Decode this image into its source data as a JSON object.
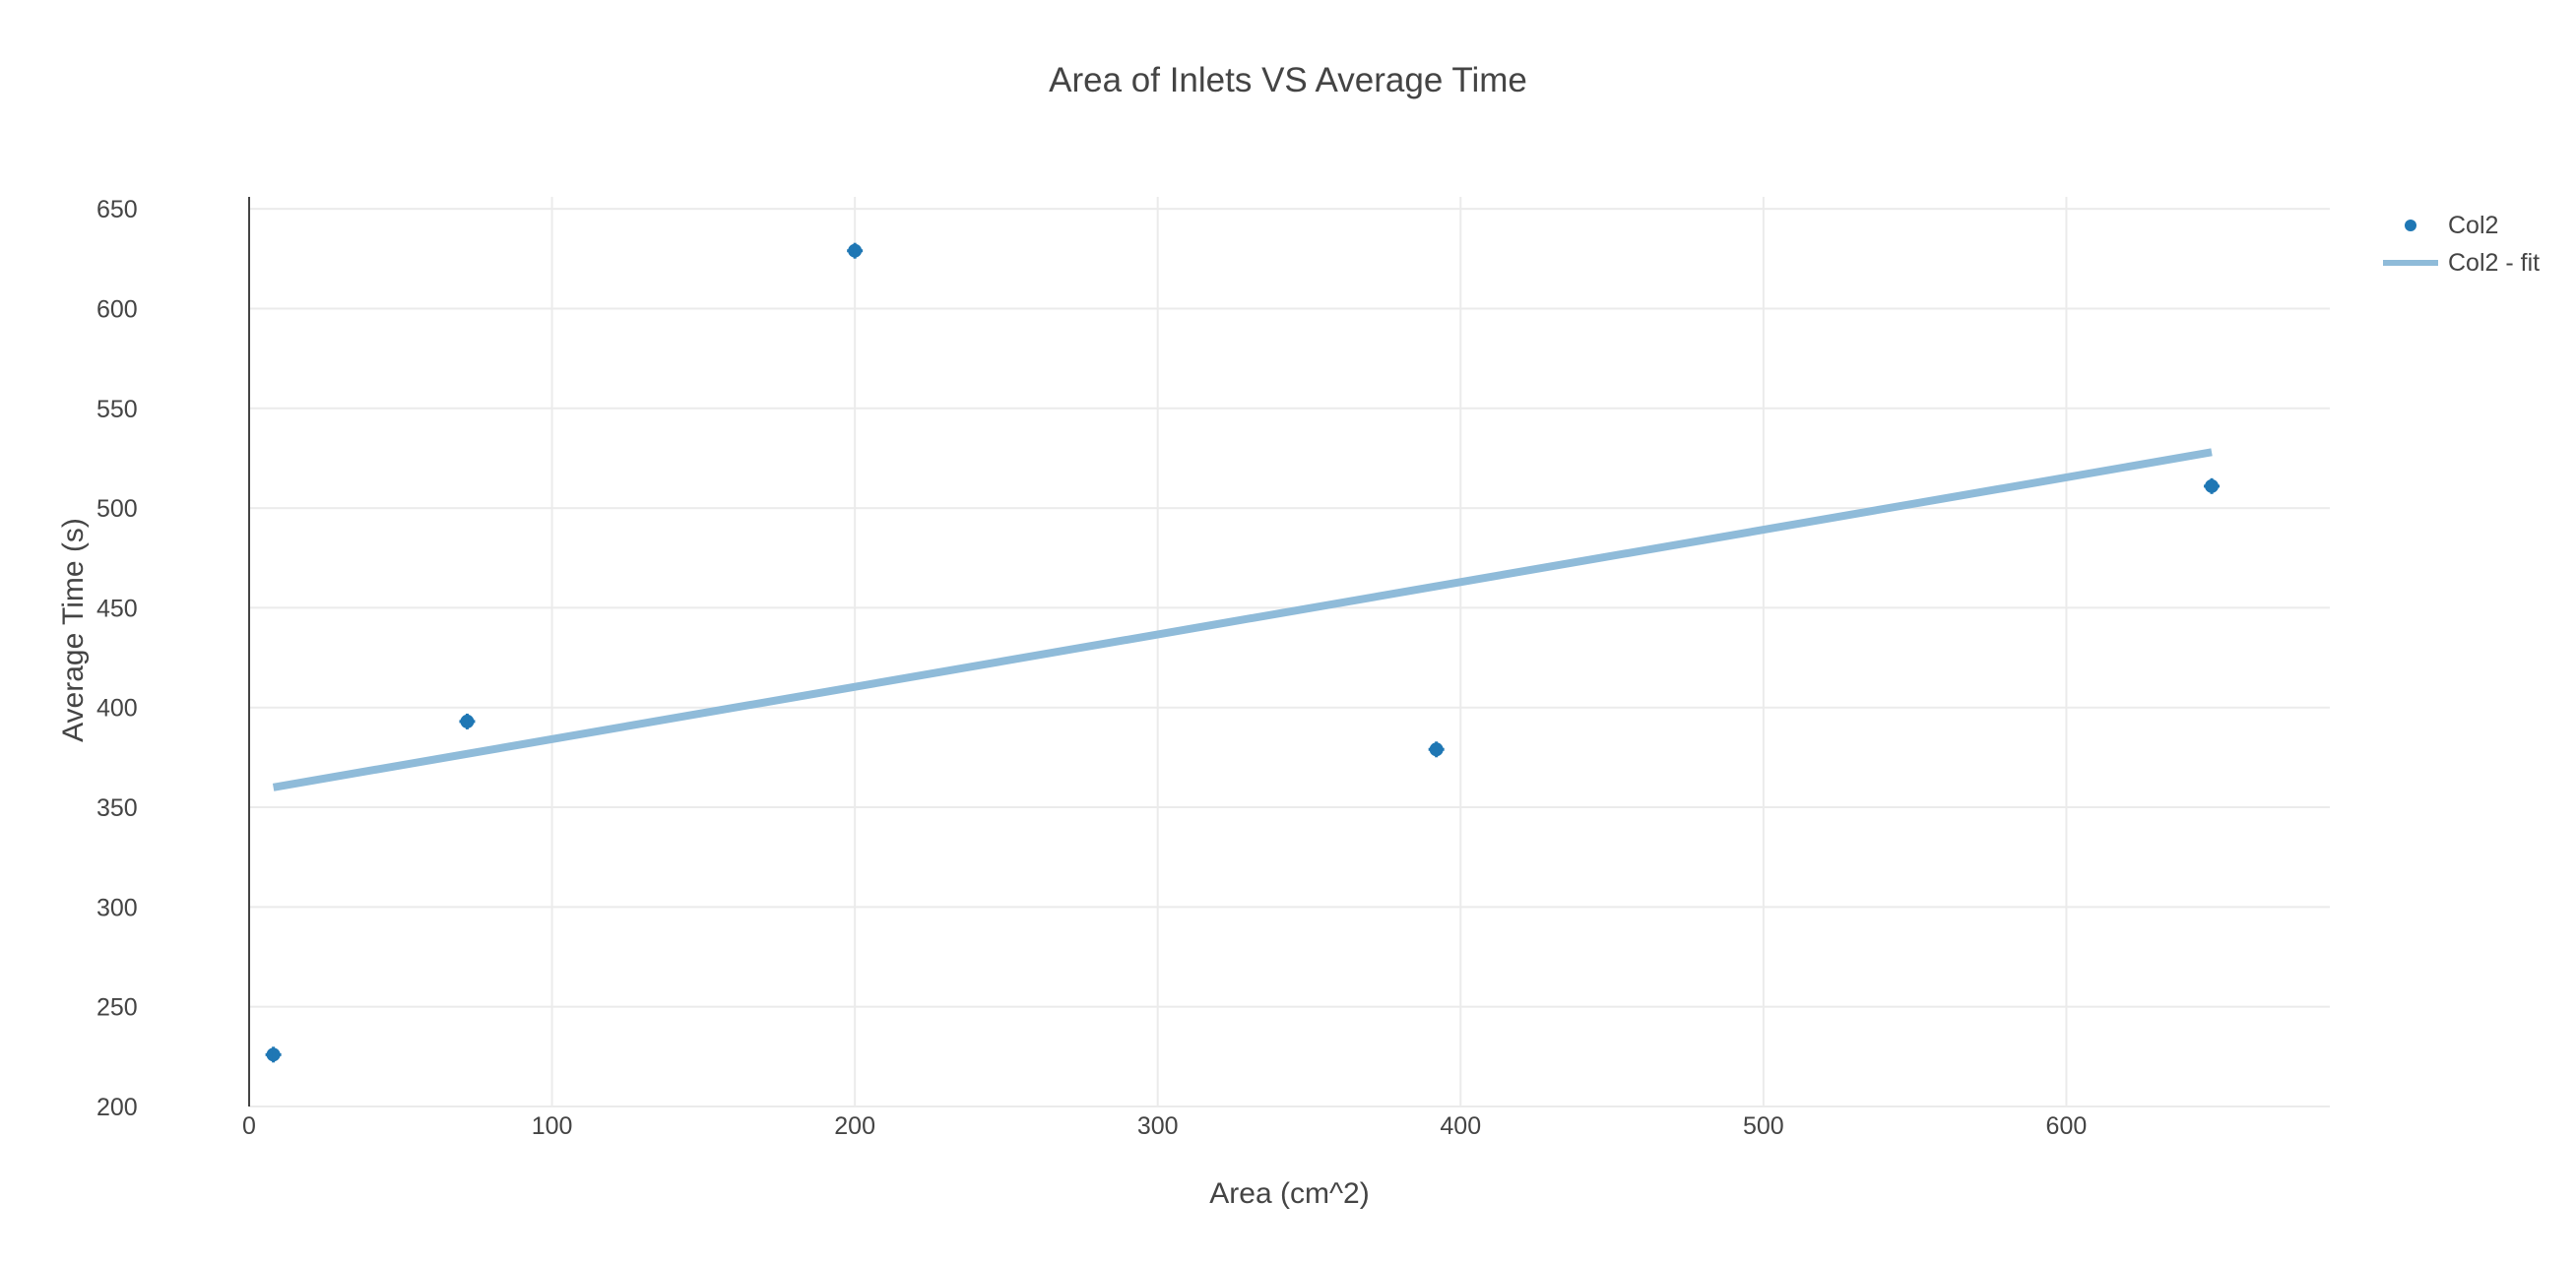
{
  "chart_data": {
    "type": "scatter",
    "title": "Area of Inlets VS Average Time",
    "xlabel": "Area (cm^2)",
    "ylabel": "Average Time (s)",
    "xlim": [
      0,
      687
    ],
    "ylim": [
      200,
      656
    ],
    "xticks": [
      0,
      100,
      200,
      300,
      400,
      500,
      600
    ],
    "yticks": [
      200,
      250,
      300,
      350,
      400,
      450,
      500,
      550,
      600,
      650
    ],
    "grid": true,
    "legend_position": "top-right",
    "series": [
      {
        "name": "Col2",
        "mode": "markers",
        "color": "#1f77b4",
        "points": [
          {
            "x": 8,
            "y": 226
          },
          {
            "x": 72,
            "y": 393
          },
          {
            "x": 200,
            "y": 629
          },
          {
            "x": 392,
            "y": 379
          },
          {
            "x": 648,
            "y": 511
          }
        ]
      },
      {
        "name": "Col2 - fit",
        "mode": "line",
        "color": "#8fbbd9",
        "points": [
          {
            "x": 8,
            "y": 360
          },
          {
            "x": 648,
            "y": 528
          }
        ]
      }
    ]
  }
}
